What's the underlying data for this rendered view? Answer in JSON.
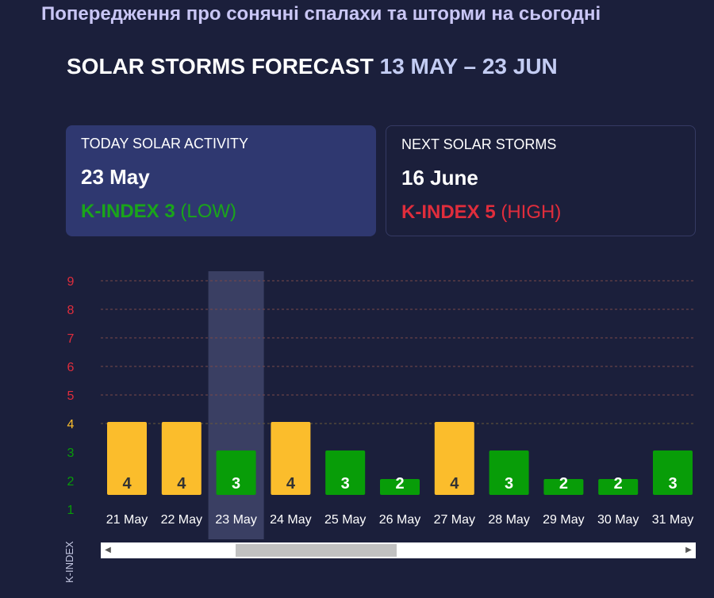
{
  "page": {
    "heading": "Попередження про сонячні спалахи та шторми на сьогодні",
    "title": "SOLAR STORMS FORECAST",
    "range": "13 MAY – 23 JUN"
  },
  "cards": {
    "today": {
      "label": "TODAY SOLAR ACTIVITY",
      "date": "23 May",
      "k_value": "K-INDEX 3",
      "k_level": "(LOW)"
    },
    "next": {
      "label": "NEXT SOLAR STORMS",
      "date": "16 June",
      "k_value": "K-INDEX 5",
      "k_level": "(HIGH)"
    }
  },
  "colors": {
    "low": "#089d08",
    "moderate": "#fbbd2c",
    "high": "#e02d3c",
    "highlight": "#3a3f63",
    "grid": "#7a4a4a"
  },
  "chart_data": {
    "type": "bar",
    "categories": [
      "21 May",
      "22 May",
      "23 May",
      "24 May",
      "25 May",
      "26 May",
      "27 May",
      "28 May",
      "29 May",
      "30 May",
      "31 May"
    ],
    "values": [
      4,
      4,
      3,
      4,
      3,
      2,
      4,
      3,
      2,
      2,
      3
    ],
    "ylabel": "K-INDEX",
    "ylim": [
      1,
      9
    ],
    "y_ticks": [
      1,
      2,
      3,
      4,
      5,
      6,
      7,
      8,
      9
    ],
    "highlighted_category": "23 May",
    "grid": true
  },
  "scrollbar": {
    "left_arrow": "◀",
    "right_arrow": "▶"
  }
}
